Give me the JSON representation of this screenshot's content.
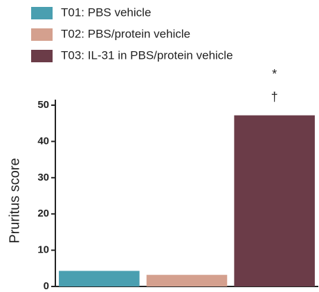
{
  "chart_data": {
    "type": "bar",
    "categories": [
      null,
      null,
      null
    ],
    "series": [
      {
        "name": "T01:  PBS vehicle",
        "color": "#4a9fb0",
        "values": [
          4.3,
          null,
          null
        ]
      },
      {
        "name": "T02:  PBS/protein vehicle",
        "color": "#d4a08e",
        "values": [
          null,
          3.2,
          null
        ]
      },
      {
        "name": "T03:  IL-31 in PBS/protein vehicle",
        "color": "#6b3c48",
        "values": [
          null,
          null,
          47.2
        ]
      }
    ],
    "annotations": [
      "*",
      "†"
    ],
    "y_label": "Pruritus score",
    "ylim": [
      0,
      50
    ],
    "yticks": [
      0,
      10,
      20,
      30,
      40,
      50
    ],
    "grid": false
  }
}
